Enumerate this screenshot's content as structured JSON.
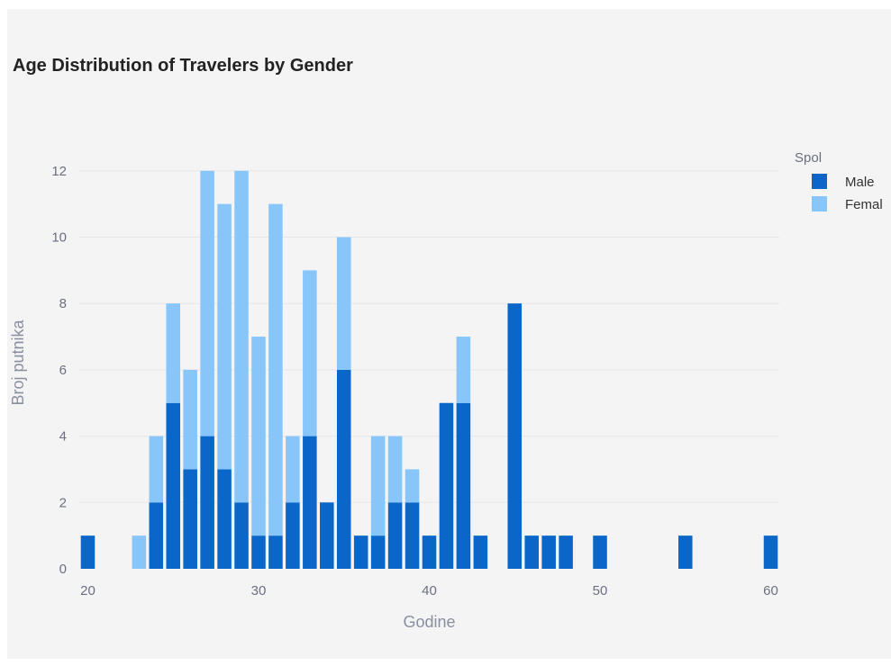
{
  "chart_data": {
    "type": "bar",
    "barmode": "stack",
    "title": "Age Distribution of Travelers by Gender",
    "xlabel": "Godine",
    "ylabel": "Broj putnika",
    "xlim": [
      19.5,
      60.5
    ],
    "ylim": [
      0,
      12.7
    ],
    "xticks": [
      20,
      30,
      40,
      50,
      60
    ],
    "yticks": [
      0,
      2,
      4,
      6,
      8,
      10,
      12
    ],
    "grid": true,
    "legend": {
      "title": "Spol",
      "position": "top-right"
    },
    "x": [
      20,
      21,
      22,
      23,
      24,
      25,
      26,
      27,
      28,
      29,
      30,
      31,
      32,
      33,
      34,
      35,
      36,
      37,
      38,
      39,
      40,
      41,
      42,
      43,
      44,
      45,
      46,
      47,
      48,
      49,
      50,
      51,
      52,
      53,
      54,
      55,
      56,
      57,
      58,
      59,
      60
    ],
    "series": [
      {
        "name": "Male",
        "color": "#0a66c8",
        "values": [
          1,
          0,
          0,
          0,
          2,
          5,
          3,
          4,
          3,
          2,
          1,
          1,
          2,
          4,
          2,
          6,
          1,
          1,
          2,
          2,
          1,
          5,
          5,
          1,
          0,
          8,
          1,
          1,
          1,
          0,
          1,
          0,
          0,
          0,
          0,
          1,
          0,
          0,
          0,
          0,
          1
        ]
      },
      {
        "name": "Femal",
        "color": "#88c6fa",
        "values": [
          0,
          0,
          0,
          1,
          2,
          3,
          3,
          8,
          8,
          10,
          6,
          10,
          2,
          5,
          0,
          4,
          0,
          3,
          2,
          1,
          0,
          0,
          2,
          0,
          0,
          0,
          0,
          0,
          0,
          0,
          0,
          0,
          0,
          0,
          0,
          0,
          0,
          0,
          0,
          0,
          0
        ]
      }
    ]
  }
}
